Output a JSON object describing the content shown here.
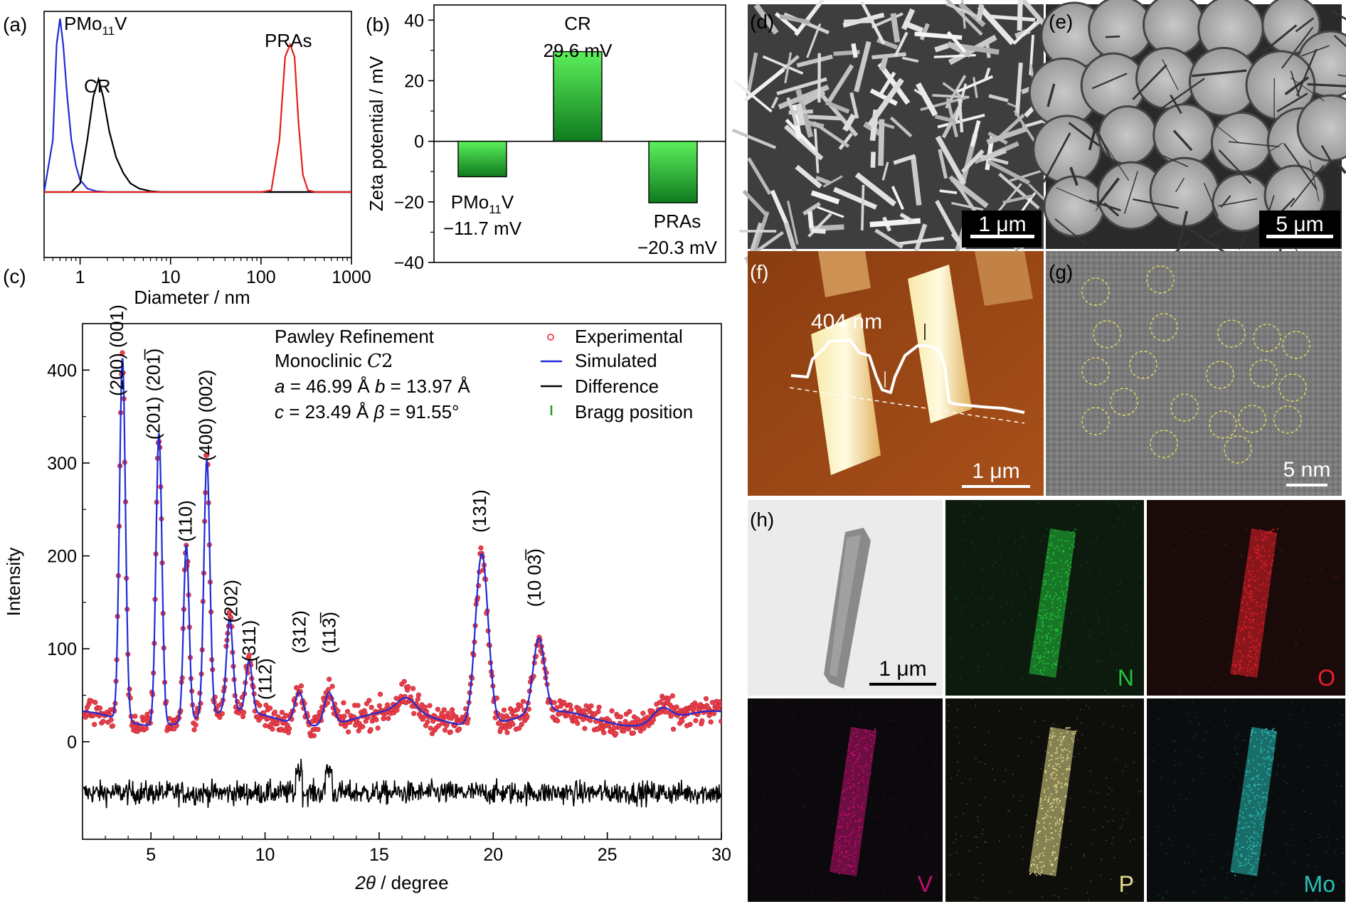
{
  "panels": {
    "a": "(a)",
    "b": "(b)",
    "c": "(c)",
    "d": "(d)",
    "e": "(e)",
    "f": "(f)",
    "g": "(g)",
    "h": "(h)"
  },
  "chart_data": [
    {
      "panel": "a",
      "type": "line",
      "xlabel": "Diameter / nm",
      "ylabel": "",
      "xscale": "log",
      "xlim": [
        0.4,
        1000
      ],
      "xticks": [
        "1",
        "10",
        "100",
        "1000"
      ],
      "series": [
        {
          "name": "PMo11V",
          "label_main": "PMo",
          "label_sub": "11",
          "label_tail": "V",
          "color": "#1f2bd6",
          "x": [
            0.4,
            0.5,
            0.55,
            0.6,
            0.65,
            0.72,
            0.8,
            0.9,
            1.0,
            1.2,
            1.5,
            2.0,
            3.0,
            10,
            1000
          ],
          "y": [
            0,
            0.3,
            0.85,
            1.0,
            0.85,
            0.55,
            0.3,
            0.15,
            0.07,
            0.02,
            0.005,
            0,
            0,
            0,
            0
          ]
        },
        {
          "name": "CR",
          "color": "#000000",
          "x": [
            0.4,
            0.8,
            1.0,
            1.2,
            1.4,
            1.6,
            1.8,
            2.1,
            2.5,
            3.0,
            3.6,
            4.5,
            6.0,
            8.0,
            1000
          ],
          "y": [
            0,
            0,
            0.05,
            0.3,
            0.55,
            0.65,
            0.55,
            0.35,
            0.2,
            0.11,
            0.05,
            0.02,
            0.005,
            0,
            0
          ]
        },
        {
          "name": "PRAs",
          "color": "#e0201c",
          "x": [
            0.4,
            100,
            130,
            160,
            185,
            210,
            235,
            260,
            290,
            330,
            400,
            1000
          ],
          "y": [
            0,
            0,
            0.01,
            0.3,
            0.78,
            0.85,
            0.78,
            0.4,
            0.1,
            0.01,
            0,
            0
          ]
        }
      ]
    },
    {
      "panel": "b",
      "type": "bar",
      "ylabel": "Zeta potential / mV",
      "ylim": [
        -40,
        45
      ],
      "yticks": [
        -40,
        -20,
        0,
        20,
        40
      ],
      "categories": [
        "PMo11V",
        "CR",
        "PRAs"
      ],
      "values": [
        -11.7,
        29.6,
        -20.3
      ],
      "value_labels": [
        "−11.7 mV",
        "29.6 mV",
        "−20.3 mV"
      ],
      "category_labels": {
        "cr": "CR",
        "pras": "PRAs",
        "pmo_main": "PMo",
        "pmo_sub": "11",
        "pmo_tail": "V"
      }
    },
    {
      "panel": "c",
      "type": "line",
      "xlabel_italic": "2θ",
      "xlabel_tail": " / degree",
      "ylabel": "Intensity",
      "xlim": [
        2,
        30
      ],
      "ylim": [
        -105,
        450
      ],
      "xticks": [
        5,
        10,
        15,
        20,
        25,
        30
      ],
      "yticks": [
        0,
        100,
        200,
        300,
        400
      ],
      "annotation": {
        "line1": "Pawley Refinement",
        "line2_main": "Monoclinic ",
        "line2_it": "C",
        "line2_tail": "2",
        "line3_a_it": "a",
        "line3_a": " = 46.99 Å  ",
        "line3_b_it": "b",
        "line3_b": " = 13.97 Å",
        "line4_c_it": "c",
        "line4_c": " = 23.49 Å  ",
        "line4_beta_it": "β",
        "line4_beta": " = 91.55°"
      },
      "legend": [
        {
          "name": "Experimental",
          "color": "#e8404a"
        },
        {
          "name": "Simulated",
          "color": "#1f2bd6"
        },
        {
          "name": "Difference",
          "color": "#000000"
        },
        {
          "name": "Bragg position",
          "color": "#1f9a1f"
        }
      ],
      "peaks": [
        {
          "x": 3.75,
          "h": 390,
          "w": 0.13
        },
        {
          "x": 5.35,
          "h": 315,
          "w": 0.13
        },
        {
          "x": 6.55,
          "h": 190,
          "w": 0.12
        },
        {
          "x": 7.45,
          "h": 275,
          "w": 0.13
        },
        {
          "x": 8.45,
          "h": 100,
          "w": 0.14
        },
        {
          "x": 9.3,
          "h": 55,
          "w": 0.14
        },
        {
          "x": 11.5,
          "h": 35,
          "w": 0.2
        },
        {
          "x": 12.8,
          "h": 35,
          "w": 0.2
        },
        {
          "x": 16.2,
          "h": 15,
          "w": 0.4
        },
        {
          "x": 19.5,
          "h": 185,
          "w": 0.28
        },
        {
          "x": 22.0,
          "h": 80,
          "w": 0.25
        },
        {
          "x": 27.4,
          "h": 15,
          "w": 0.4
        }
      ],
      "baseline": 25,
      "difference_offset": -55,
      "bragg_level": -120,
      "peak_labels": [
        {
          "text": "(200) (001)",
          "x": 3.5,
          "y": 372
        },
        {
          "text": "(201) (201̅)",
          "x": 5.1,
          "y": 325
        },
        {
          "text": "(110)",
          "x": 6.5,
          "y": 215
        },
        {
          "text": "(400) (002)",
          "x": 7.4,
          "y": 302
        },
        {
          "text": "(202)",
          "x": 8.5,
          "y": 128
        },
        {
          "text": "(311)",
          "x": 9.3,
          "y": 86
        },
        {
          "text": "(112̅)",
          "x": 10.0,
          "y": 45
        },
        {
          "text": "(312)",
          "x": 11.5,
          "y": 95
        },
        {
          "text": "(113̅)",
          "x": 12.8,
          "y": 95
        },
        {
          "text": "(131)",
          "x": 19.4,
          "y": 225
        },
        {
          "text": "(10 03̅)",
          "x": 21.8,
          "y": 145
        }
      ]
    }
  ],
  "images": {
    "d": {
      "scale": "1 μm"
    },
    "e": {
      "scale": "5 μm"
    },
    "f": {
      "scale": "1 μm",
      "profile_label": "404 nm"
    },
    "g": {
      "scale": "5 nm"
    },
    "h": {
      "scale": "1 μm",
      "maps": [
        {
          "element": "N",
          "color": "#22c43a",
          "bg": "#0d1a0e"
        },
        {
          "element": "O",
          "color": "#e8202a",
          "bg": "#1a0a0a"
        },
        {
          "element": "V",
          "color": "#c01070",
          "bg": "#0c090c"
        },
        {
          "element": "P",
          "color": "#e8e090",
          "bg": "#0e0e0b"
        },
        {
          "element": "Mo",
          "color": "#28c0b8",
          "bg": "#090d0d"
        }
      ]
    }
  }
}
